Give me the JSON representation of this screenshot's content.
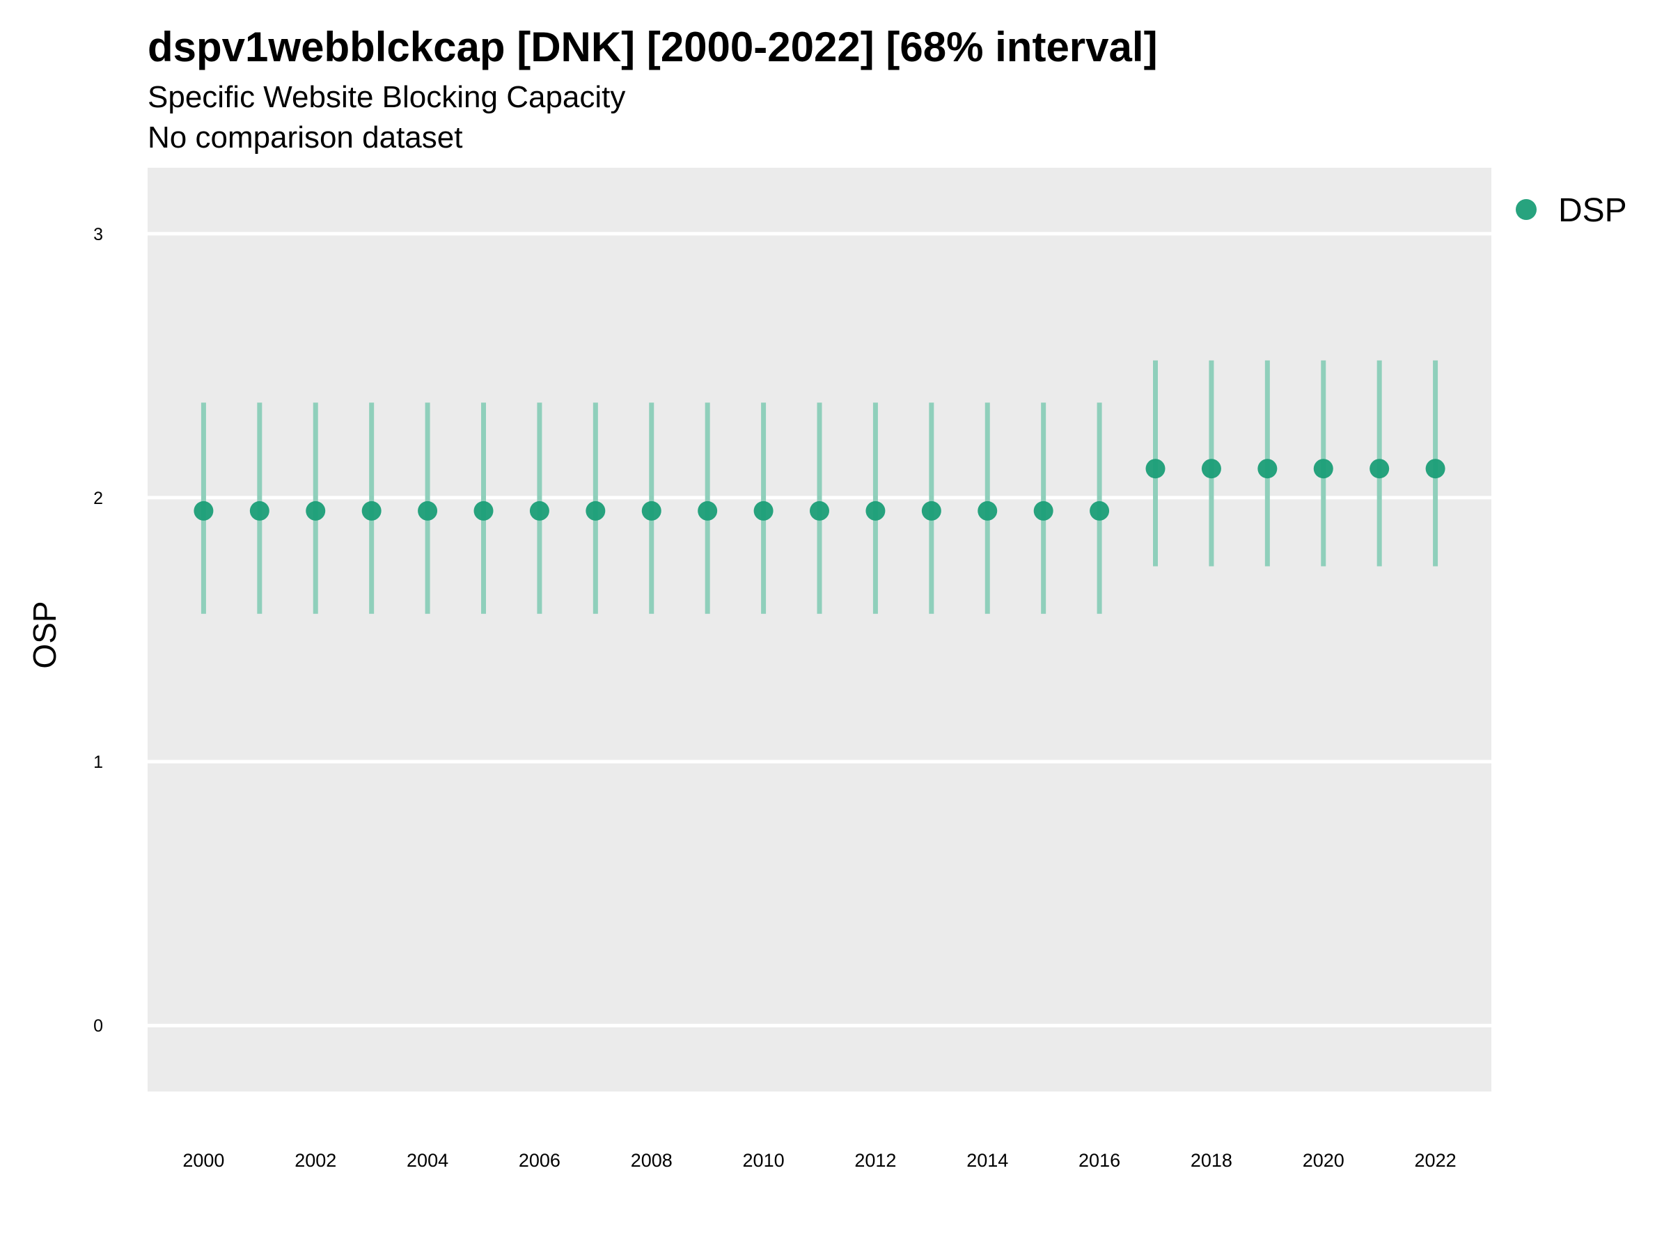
{
  "chart_data": {
    "type": "scatter",
    "title": "dspv1webblckcap [DNK] [2000-2022] [68% interval]",
    "subtitle": "Specific Website Blocking Capacity",
    "caption": "No comparison dataset",
    "xlabel": "",
    "ylabel": "OSP",
    "xlim": [
      1999.0,
      2023.0
    ],
    "ylim": [
      -0.25,
      3.25
    ],
    "x_ticks": [
      2000,
      2002,
      2004,
      2006,
      2008,
      2010,
      2012,
      2014,
      2016,
      2018,
      2020,
      2022
    ],
    "y_ticks": [
      0,
      1,
      2,
      3
    ],
    "grid": true,
    "legend_position": "right",
    "colors": {
      "panel": "#EBEBEB",
      "grid": "#FFFFFF",
      "point": "#1B9E77",
      "interval": "#8FCFBB"
    },
    "series": [
      {
        "name": "DSP",
        "x": [
          2000,
          2001,
          2002,
          2003,
          2004,
          2005,
          2006,
          2007,
          2008,
          2009,
          2010,
          2011,
          2012,
          2013,
          2014,
          2015,
          2016,
          2017,
          2018,
          2019,
          2020,
          2021,
          2022
        ],
        "y": [
          1.95,
          1.95,
          1.95,
          1.95,
          1.95,
          1.95,
          1.95,
          1.95,
          1.95,
          1.95,
          1.95,
          1.95,
          1.95,
          1.95,
          1.95,
          1.95,
          1.95,
          2.11,
          2.11,
          2.11,
          2.11,
          2.11,
          2.11
        ],
        "lower": [
          1.56,
          1.56,
          1.56,
          1.56,
          1.56,
          1.56,
          1.56,
          1.56,
          1.56,
          1.56,
          1.56,
          1.56,
          1.56,
          1.56,
          1.56,
          1.56,
          1.56,
          1.74,
          1.74,
          1.74,
          1.74,
          1.74,
          1.74
        ],
        "upper": [
          2.36,
          2.36,
          2.36,
          2.36,
          2.36,
          2.36,
          2.36,
          2.36,
          2.36,
          2.36,
          2.36,
          2.36,
          2.36,
          2.36,
          2.36,
          2.36,
          2.36,
          2.52,
          2.52,
          2.52,
          2.52,
          2.52,
          2.52
        ]
      }
    ]
  }
}
